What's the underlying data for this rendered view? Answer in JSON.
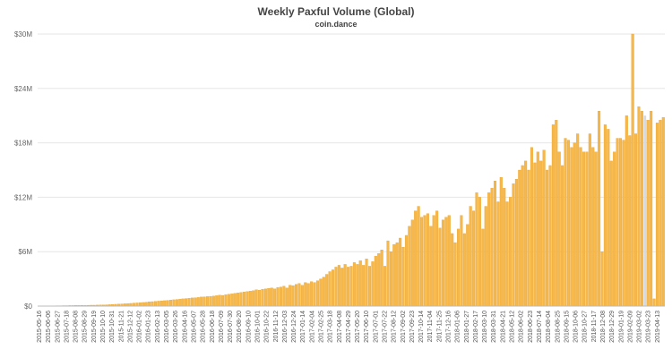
{
  "chart_data": {
    "type": "bar",
    "title": "Weekly Paxful Volume (Global)",
    "subtitle": "coin.dance",
    "y_ticks": [
      "$0",
      "$6M",
      "$12M",
      "$18M",
      "$24M",
      "$30M"
    ],
    "y_tick_values": [
      0,
      6,
      12,
      18,
      24,
      30
    ],
    "ylim": [
      0,
      30
    ],
    "y_unit": "USD millions",
    "grid": "horizontal",
    "colors": {
      "bar": "#F7B84B",
      "bar_outline": "#E69A17",
      "highlight_bar": "#D9D9D9",
      "grid": "#E6E6E6"
    },
    "x_tick_labels": [
      "2015-05-16",
      "2015-06-06",
      "2015-06-27",
      "2015-07-18",
      "2015-08-08",
      "2015-08-29",
      "2015-09-19",
      "2015-10-10",
      "2015-10-31",
      "2015-11-21",
      "2015-12-12",
      "2016-01-02",
      "2016-01-23",
      "2016-02-13",
      "2016-03-05",
      "2016-03-26",
      "2016-04-16",
      "2016-05-07",
      "2016-05-28",
      "2016-06-18",
      "2016-07-09",
      "2016-07-30",
      "2016-08-20",
      "2016-09-10",
      "2016-10-01",
      "2016-10-22",
      "2016-11-12",
      "2016-12-03",
      "2016-12-24",
      "2017-01-14",
      "2017-02-04",
      "2017-02-25",
      "2017-03-18",
      "2017-04-08",
      "2017-04-29",
      "2017-05-20",
      "2017-06-10",
      "2017-07-01",
      "2017-07-22",
      "2017-08-12",
      "2017-09-02",
      "2017-09-23",
      "2017-10-14",
      "2017-11-04",
      "2017-11-25",
      "2017-12-16",
      "2018-01-06",
      "2018-01-27",
      "2018-02-17",
      "2018-03-10",
      "2018-03-31",
      "2018-04-21",
      "2018-05-12",
      "2018-06-02",
      "2018-06-23",
      "2018-07-14",
      "2018-08-04",
      "2018-08-25",
      "2018-09-15",
      "2018-10-06",
      "2018-10-27",
      "2018-11-17",
      "2018-12-08",
      "2018-12-29",
      "2019-01-19",
      "2019-02-09",
      "2019-03-02",
      "2019-03-23",
      "2019-04-13"
    ],
    "highlight_index": 198,
    "values": [
      0.02,
      0.02,
      0.02,
      0.03,
      0.03,
      0.03,
      0.04,
      0.04,
      0.05,
      0.05,
      0.06,
      0.06,
      0.07,
      0.07,
      0.08,
      0.08,
      0.09,
      0.1,
      0.1,
      0.11,
      0.12,
      0.13,
      0.14,
      0.16,
      0.18,
      0.2,
      0.22,
      0.24,
      0.26,
      0.28,
      0.3,
      0.33,
      0.35,
      0.38,
      0.4,
      0.43,
      0.46,
      0.49,
      0.52,
      0.55,
      0.58,
      0.6,
      0.63,
      0.66,
      0.7,
      0.73,
      0.76,
      0.8,
      0.83,
      0.86,
      0.9,
      0.92,
      0.95,
      1.0,
      1.02,
      1.05,
      1.08,
      1.1,
      1.15,
      1.2,
      1.18,
      1.25,
      1.3,
      1.35,
      1.4,
      1.45,
      1.5,
      1.55,
      1.6,
      1.65,
      1.7,
      1.8,
      1.75,
      1.85,
      1.9,
      1.95,
      2.0,
      1.9,
      2.05,
      2.1,
      2.2,
      2.0,
      2.3,
      2.25,
      2.4,
      2.5,
      2.3,
      2.6,
      2.5,
      2.7,
      2.6,
      2.8,
      3.0,
      3.2,
      3.5,
      3.8,
      4.0,
      4.3,
      4.5,
      4.2,
      4.6,
      4.3,
      4.4,
      4.8,
      4.6,
      5.0,
      4.5,
      5.2,
      4.4,
      4.9,
      5.5,
      5.8,
      6.2,
      4.4,
      7.2,
      6.0,
      6.8,
      7.0,
      7.5,
      6.5,
      7.8,
      8.8,
      9.5,
      10.5,
      11.0,
      9.8,
      10.0,
      10.2,
      8.8,
      10.0,
      10.5,
      8.6,
      9.5,
      9.8,
      10.0,
      8.0,
      7.0,
      8.5,
      10.0,
      8.0,
      9.0,
      11.0,
      10.5,
      12.5,
      12.0,
      8.5,
      11.0,
      12.5,
      13.0,
      13.8,
      11.5,
      14.2,
      13.0,
      11.5,
      12.0,
      13.5,
      14.0,
      15.0,
      15.5,
      16.0,
      15.0,
      17.5,
      15.8,
      17.0,
      16.0,
      17.2,
      15.0,
      15.5,
      20.0,
      20.5,
      17.0,
      15.5,
      18.5,
      18.3,
      17.5,
      18.0,
      19.0,
      17.5,
      17.0,
      17.0,
      19.0,
      17.5,
      17.0,
      21.5,
      6.0,
      20.0,
      19.5,
      16.0,
      17.0,
      18.5,
      18.5,
      18.3,
      21.0,
      18.8,
      30.0,
      19.0,
      22.0,
      21.5,
      21.0,
      20.5,
      21.5,
      0.8,
      20.2,
      20.5,
      20.8
    ]
  }
}
